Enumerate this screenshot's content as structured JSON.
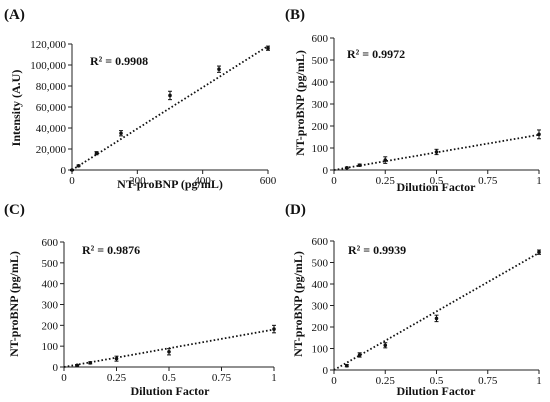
{
  "chart_data": [
    {
      "type": "scatter",
      "panel_label": "(A)",
      "r2_label": "R² = 0.9908",
      "xlabel": "NT-proBNP (pg/mL)",
      "ylabel": "Intensity  (A.U)",
      "xlim": [
        0,
        600
      ],
      "ylim": [
        0,
        120000
      ],
      "xticks": [
        "0",
        "200",
        "400",
        "600"
      ],
      "yticks": [
        "0",
        "20,000",
        "40,000",
        "60,000",
        "80,000",
        "100,000",
        "120,000"
      ],
      "trendline": {
        "style": "dotted",
        "from": [
          0,
          0
        ],
        "to": [
          600,
          118000
        ]
      },
      "series": [
        {
          "points": [
            {
              "x": 0,
              "y": 0,
              "err": 500
            },
            {
              "x": 20,
              "y": 4000,
              "err": 800
            },
            {
              "x": 75,
              "y": 16000,
              "err": 1500
            },
            {
              "x": 150,
              "y": 35000,
              "err": 2500
            },
            {
              "x": 300,
              "y": 71000,
              "err": 4000
            },
            {
              "x": 450,
              "y": 96000,
              "err": 3000
            },
            {
              "x": 600,
              "y": 116000,
              "err": 2000
            }
          ]
        }
      ]
    },
    {
      "type": "scatter",
      "panel_label": "(B)",
      "r2_label": "R² = 0.9972",
      "xlabel": "Dilution Factor",
      "ylabel": "NT-proBNP (pg/mL)",
      "xlim": [
        0,
        1
      ],
      "ylim": [
        0,
        600
      ],
      "xticks": [
        "0",
        "0.25",
        "0.5",
        "0.75",
        "1"
      ],
      "yticks": [
        "0",
        "100",
        "200",
        "300",
        "400",
        "500",
        "600"
      ],
      "trendline": {
        "style": "dotted",
        "from": [
          0,
          0
        ],
        "to": [
          1,
          160
        ]
      },
      "series": [
        {
          "points": [
            {
              "x": 0.0625,
              "y": 10,
              "err": 3
            },
            {
              "x": 0.125,
              "y": 22,
              "err": 5
            },
            {
              "x": 0.25,
              "y": 45,
              "err": 15
            },
            {
              "x": 0.5,
              "y": 82,
              "err": 12
            },
            {
              "x": 1,
              "y": 162,
              "err": 20
            }
          ]
        }
      ]
    },
    {
      "type": "scatter",
      "panel_label": "(C)",
      "r2_label": "R² = 0.9876",
      "xlabel": "Dilution Factor",
      "ylabel": "NT-proBNP (pg/mL)",
      "xlim": [
        0,
        1
      ],
      "ylim": [
        0,
        600
      ],
      "xticks": [
        "0",
        "0.25",
        "0.5",
        "0.75",
        "1"
      ],
      "yticks": [
        "0",
        "100",
        "200",
        "300",
        "400",
        "500",
        "600"
      ],
      "trendline": {
        "style": "dotted",
        "from": [
          0,
          0
        ],
        "to": [
          1,
          180
        ]
      },
      "series": [
        {
          "points": [
            {
              "x": 0.0625,
              "y": 8,
              "err": 3
            },
            {
              "x": 0.125,
              "y": 20,
              "err": 5
            },
            {
              "x": 0.25,
              "y": 40,
              "err": 12
            },
            {
              "x": 0.5,
              "y": 73,
              "err": 15
            },
            {
              "x": 1,
              "y": 182,
              "err": 18
            }
          ]
        }
      ]
    },
    {
      "type": "scatter",
      "panel_label": "(D)",
      "r2_label": "R² = 0.9939",
      "xlabel": "Dilution Factor",
      "ylabel": "NT-proBNP (pg/mL)",
      "xlim": [
        0,
        1
      ],
      "ylim": [
        0,
        600
      ],
      "xticks": [
        "0",
        "0.25",
        "0.5",
        "0.75",
        "1"
      ],
      "yticks": [
        "0",
        "100",
        "200",
        "300",
        "400",
        "500",
        "600"
      ],
      "trendline": {
        "style": "dotted",
        "from": [
          0,
          0
        ],
        "to": [
          1,
          545
        ]
      },
      "series": [
        {
          "points": [
            {
              "x": 0.0625,
              "y": 20,
              "err": 5
            },
            {
              "x": 0.125,
              "y": 70,
              "err": 10
            },
            {
              "x": 0.25,
              "y": 115,
              "err": 12
            },
            {
              "x": 0.5,
              "y": 240,
              "err": 15
            },
            {
              "x": 1,
              "y": 548,
              "err": 10
            }
          ]
        }
      ]
    }
  ]
}
